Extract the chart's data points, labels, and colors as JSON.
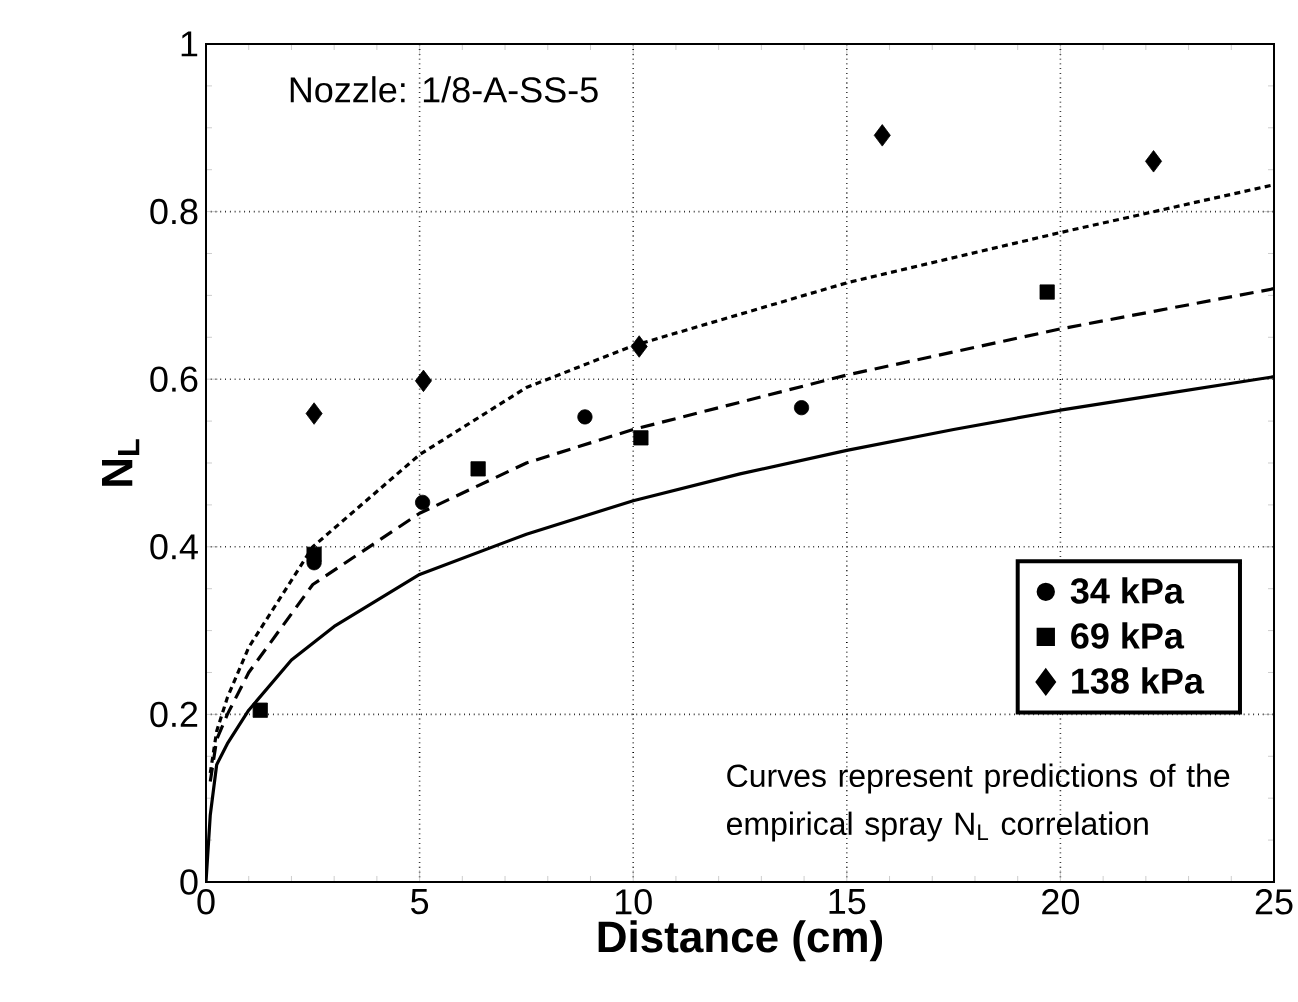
{
  "chart_data": {
    "type": "scatter",
    "xlabel": "Distance (cm)",
    "ylabel": "N$_{L}$",
    "xlim": [
      0,
      25
    ],
    "ylim": [
      0,
      1
    ],
    "xticks": [
      0,
      5,
      10,
      15,
      20,
      25
    ],
    "yticks": [
      0,
      0.2,
      0.4,
      0.6,
      0.8,
      1
    ],
    "grid": true,
    "legend": "bottom right",
    "annotations": [
      "Nozzle: 1/8-A-SS-5",
      "Curves represent predictions of the empirical spray N$_{L}$ correlation"
    ],
    "series": [
      {
        "name": "34 kPa",
        "marker": "circle",
        "color": "#000000",
        "x": [
          2.53,
          5.07,
          8.87,
          13.94
        ],
        "values": [
          0.381,
          0.453,
          0.555,
          0.566
        ]
      },
      {
        "name": "69 kPa",
        "marker": "square",
        "color": "#000000",
        "x": [
          1.27,
          2.53,
          6.37,
          10.18,
          19.69
        ],
        "values": [
          0.205,
          0.391,
          0.493,
          0.53,
          0.704
        ]
      },
      {
        "name": "138 kPa",
        "marker": "diamond",
        "color": "#000000",
        "x": [
          2.53,
          5.09,
          10.14,
          15.83,
          22.18
        ],
        "values": [
          0.559,
          0.598,
          0.639,
          0.891,
          0.86
        ]
      },
      {
        "type": "line",
        "line_style": "solid",
        "marker": "none",
        "color": "#000000",
        "x": [
          0,
          0.1,
          0.25,
          0.5,
          1,
          2,
          3,
          5,
          7.5,
          10,
          12.5,
          15,
          17.5,
          20,
          22.5,
          25
        ],
        "values": [
          0,
          0.08,
          0.14,
          0.165,
          0.205,
          0.265,
          0.305,
          0.367,
          0.415,
          0.455,
          0.487,
          0.515,
          0.54,
          0.563,
          0.583,
          0.603
        ]
      },
      {
        "type": "line",
        "line_style": "dashed",
        "marker": "none",
        "color": "#000000",
        "x": [
          0.1,
          0.25,
          0.5,
          1,
          2.5,
          5,
          7.5,
          10,
          15,
          20,
          25
        ],
        "values": [
          0.12,
          0.17,
          0.2,
          0.25,
          0.355,
          0.44,
          0.5,
          0.54,
          0.605,
          0.66,
          0.708
        ]
      },
      {
        "type": "line",
        "line_style": "dotted",
        "marker": "none",
        "color": "#000000",
        "x": [
          0.1,
          0.25,
          0.5,
          1,
          2.5,
          5,
          7.5,
          10,
          15,
          20,
          25
        ],
        "values": [
          0.13,
          0.18,
          0.22,
          0.28,
          0.4,
          0.51,
          0.59,
          0.64,
          0.715,
          0.775,
          0.832
        ]
      }
    ]
  }
}
